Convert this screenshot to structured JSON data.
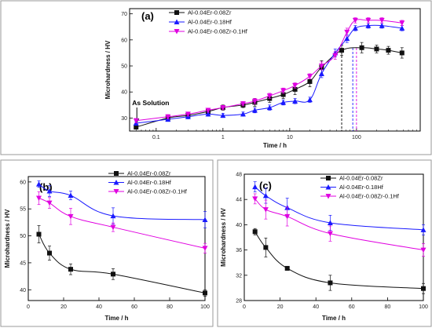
{
  "chart_data": [
    {
      "panel": "(a)",
      "type": "line",
      "xscale": "log",
      "xlabel": "Time / h",
      "ylabel": "Microhardness / HV",
      "xlim": [
        0.04,
        900
      ],
      "ylim": [
        25,
        72
      ],
      "xticks": [
        0.1,
        1,
        10,
        100
      ],
      "xtick_labels": [
        "0.1",
        "1",
        "10",
        "100"
      ],
      "yticks": [
        30,
        40,
        50,
        60,
        70
      ],
      "legend": "top-left",
      "annotation": "As Solution",
      "annotation_x": 0.05,
      "vlines": [
        {
          "x": 60,
          "color": "#000000"
        },
        {
          "x": 88,
          "color": "#1a1aff"
        },
        {
          "x": 100,
          "color": "#e000e0"
        }
      ],
      "series": [
        {
          "name": "Al-0.04Er-0.08Zr",
          "color": "#111111",
          "marker": "square",
          "x": [
            0.05,
            0.15,
            0.3,
            0.6,
            1,
            2,
            3,
            5,
            8,
            12,
            20,
            30,
            60,
            120,
            200,
            300,
            480
          ],
          "y": [
            26.5,
            30,
            31,
            32.5,
            34,
            35,
            36,
            37.5,
            39,
            41,
            44,
            49.5,
            56,
            57,
            56.5,
            56,
            55
          ],
          "err": [
            0.8,
            0.8,
            0.8,
            0.8,
            1,
            1,
            1.5,
            1.5,
            1.5,
            2,
            2,
            2.5,
            2,
            2,
            1.5,
            1.5,
            2
          ]
        },
        {
          "name": "Al-0.04Er-0.18Hf",
          "color": "#1a1aff",
          "marker": "triangle-up",
          "x": [
            0.05,
            0.15,
            0.3,
            0.6,
            1,
            2,
            3,
            5,
            8,
            12,
            20,
            30,
            48,
            72,
            96,
            150,
            240,
            480
          ],
          "y": [
            28,
            29.5,
            30.5,
            31.5,
            31,
            31.5,
            33,
            34,
            36,
            36.5,
            37,
            47,
            55,
            60.5,
            64.5,
            65.5,
            65.5,
            64.5
          ],
          "err": [
            0.8,
            0.8,
            0.8,
            0.8,
            0.8,
            0.8,
            1,
            1,
            1,
            1,
            1,
            1.5,
            1.5,
            1.5,
            1,
            1,
            1,
            1
          ]
        },
        {
          "name": "Al-0.04Er-0.08Zr-0.1Hf",
          "color": "#e000e0",
          "marker": "triangle-down",
          "x": [
            0.05,
            0.15,
            0.3,
            0.6,
            1,
            2,
            3,
            5,
            8,
            12,
            20,
            30,
            48,
            72,
            96,
            150,
            240,
            480
          ],
          "y": [
            29,
            30.5,
            31.5,
            33,
            34,
            35.5,
            36.5,
            38.5,
            40.5,
            42.5,
            46,
            50,
            54,
            63,
            67.5,
            67.5,
            67.5,
            66.5
          ],
          "err": [
            0.8,
            0.8,
            0.8,
            0.8,
            0.8,
            0.8,
            1,
            1,
            1,
            1,
            1,
            1.5,
            1.5,
            1.5,
            1,
            1,
            1,
            1
          ]
        }
      ]
    },
    {
      "panel": "(b)",
      "type": "line",
      "xlabel": "Time / h",
      "ylabel": "Microhardness / HV",
      "xlim": [
        0,
        100
      ],
      "ylim": [
        38,
        61
      ],
      "xticks": [
        0,
        20,
        40,
        60,
        80,
        100
      ],
      "yticks": [
        40,
        45,
        50,
        55,
        60
      ],
      "legend": "top-right",
      "series": [
        {
          "name": "Al-0.04Er-0.08Zr",
          "color": "#111111",
          "marker": "square",
          "x": [
            6,
            12,
            24,
            48,
            100
          ],
          "y": [
            50.3,
            46.8,
            43.8,
            42.9,
            39.4
          ],
          "err": [
            1.6,
            1.3,
            1.0,
            1.0,
            0.6
          ]
        },
        {
          "name": "Al-0.04Er-0.18Hf",
          "color": "#1a1aff",
          "marker": "triangle-up",
          "x": [
            6,
            12,
            24,
            48,
            100
          ],
          "y": [
            59.6,
            58.3,
            57.5,
            53.7,
            53.0
          ],
          "err": [
            0.6,
            1.0,
            0.8,
            1.5,
            1.5
          ]
        },
        {
          "name": "Al-0.04Er-0.08Zr-0.1Hf",
          "color": "#e000e0",
          "marker": "triangle-down",
          "x": [
            6,
            12,
            24,
            48,
            100
          ],
          "y": [
            57.0,
            56.1,
            53.6,
            51.6,
            47.7
          ],
          "err": [
            1.2,
            1.0,
            1.5,
            0.8,
            0.9
          ]
        }
      ]
    },
    {
      "panel": "(c)",
      "type": "line",
      "xlabel": "Time / h",
      "ylabel": "Microhardness / HV",
      "xlim": [
        0,
        100
      ],
      "ylim": [
        28,
        48
      ],
      "xticks": [
        0,
        20,
        40,
        60,
        80,
        100
      ],
      "yticks": [
        28,
        32,
        36,
        40,
        44,
        48
      ],
      "legend": "top-right",
      "series": [
        {
          "name": "Al-0.04Er-0.08Zr",
          "color": "#111111",
          "marker": "square",
          "x": [
            6,
            12,
            24,
            48,
            100
          ],
          "y": [
            38.9,
            36.4,
            33.1,
            30.8,
            29.9
          ],
          "err": [
            0.5,
            1.5,
            0.2,
            1.2,
            0.8
          ]
        },
        {
          "name": "Al-0.04Er-0.18Hf",
          "color": "#1a1aff",
          "marker": "triangle-up",
          "x": [
            6,
            12,
            24,
            48,
            100
          ],
          "y": [
            46.0,
            44.6,
            42.7,
            40.3,
            39.2
          ],
          "err": [
            0.8,
            1.2,
            1.5,
            1.2,
            0.8
          ]
        },
        {
          "name": "Al-0.04Er-0.08Zr-0.1Hf",
          "color": "#e000e0",
          "marker": "triangle-down",
          "x": [
            6,
            12,
            24,
            48,
            100
          ],
          "y": [
            44.1,
            42.4,
            41.3,
            38.6,
            36.0
          ],
          "err": [
            0.8,
            1.5,
            1.5,
            1.2,
            1.0
          ]
        }
      ]
    }
  ]
}
